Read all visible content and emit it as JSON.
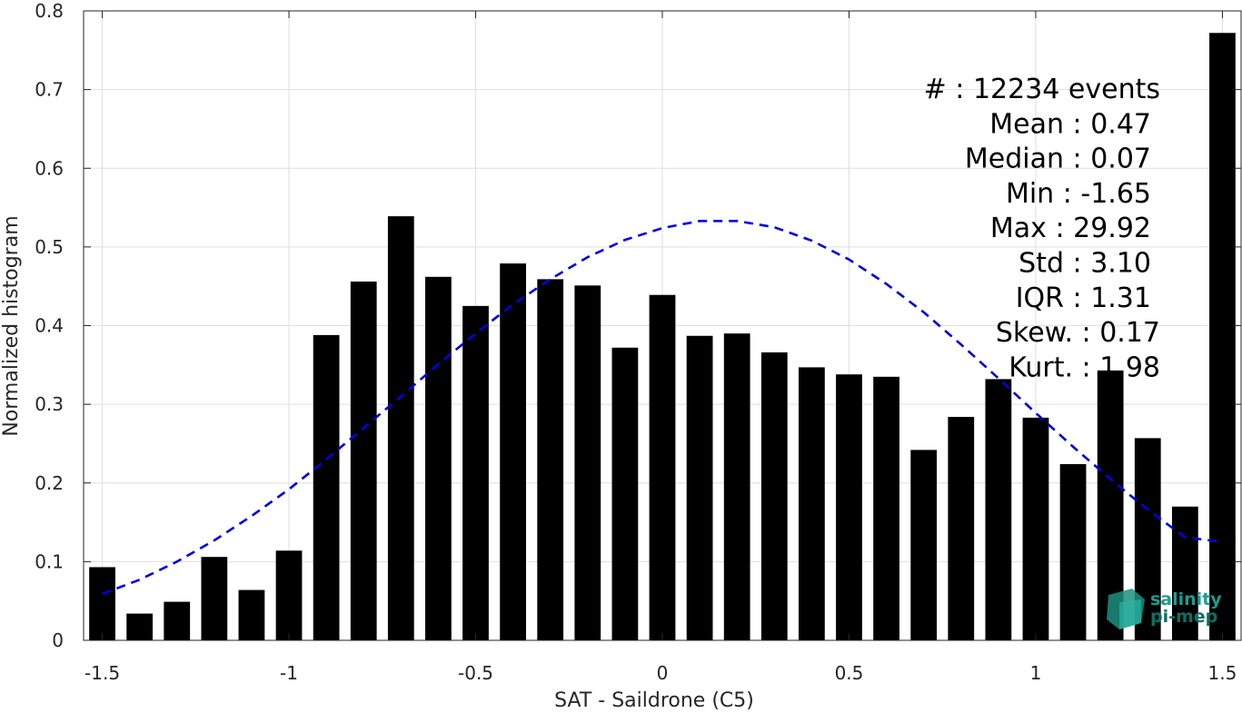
{
  "chart_data": {
    "type": "bar",
    "xlabel": "SAT - Saildrone (C5)",
    "ylabel": "Normalized histogram",
    "xlim": [
      -1.55,
      1.55
    ],
    "ylim": [
      0,
      0.8
    ],
    "x_ticks": [
      "-1.5",
      "-1",
      "-0.5",
      "0",
      "0.5",
      "1",
      "1.5"
    ],
    "y_ticks": [
      "0",
      "0.1",
      "0.2",
      "0.3",
      "0.4",
      "0.5",
      "0.6",
      "0.7",
      "0.8"
    ],
    "grid": true,
    "bar_color": "#000000",
    "bars": {
      "x": [
        -1.5,
        -1.4,
        -1.3,
        -1.2,
        -1.1,
        -1.0,
        -0.9,
        -0.8,
        -0.7,
        -0.6,
        -0.5,
        -0.4,
        -0.3,
        -0.2,
        -0.1,
        0.0,
        0.1,
        0.2,
        0.3,
        0.4,
        0.5,
        0.6,
        0.7,
        0.8,
        0.9,
        1.0,
        1.1,
        1.2,
        1.3,
        1.4,
        1.5
      ],
      "values": [
        0.093,
        0.034,
        0.049,
        0.106,
        0.064,
        0.114,
        0.388,
        0.456,
        0.539,
        0.462,
        0.425,
        0.479,
        0.459,
        0.451,
        0.372,
        0.439,
        0.387,
        0.39,
        0.366,
        0.347,
        0.338,
        0.335,
        0.242,
        0.284,
        0.332,
        0.283,
        0.224,
        0.343,
        0.257,
        0.17,
        0.772
      ]
    },
    "fit_curve": {
      "style": "dashed",
      "color": "#0000e6",
      "x": [
        -1.5,
        -1.4,
        -1.3,
        -1.2,
        -1.1,
        -1.0,
        -0.9,
        -0.8,
        -0.7,
        -0.6,
        -0.5,
        -0.4,
        -0.3,
        -0.2,
        -0.1,
        0.0,
        0.1,
        0.2,
        0.3,
        0.4,
        0.5,
        0.6,
        0.7,
        0.8,
        0.9,
        1.0,
        1.1,
        1.2,
        1.3,
        1.4,
        1.5
      ],
      "y": [
        0.059,
        0.077,
        0.1,
        0.127,
        0.158,
        0.192,
        0.23,
        0.27,
        0.31,
        0.351,
        0.39,
        0.427,
        0.459,
        0.487,
        0.509,
        0.524,
        0.533,
        0.533,
        0.525,
        0.508,
        0.484,
        0.453,
        0.417,
        0.376,
        0.333,
        0.289,
        0.246,
        0.205,
        0.166,
        0.131,
        0.125
      ]
    },
    "stats": [
      "#  : 12234 events",
      "Mean : 0.47",
      "Median : 0.07",
      "Min : -1.65",
      "Max : 29.92",
      "Std : 3.10",
      "IQR : 1.31",
      "Skew. : 0.17",
      "Kurt. : 1.98"
    ]
  },
  "logo": {
    "line1": "salinity",
    "line2": "pi-mep",
    "colors": [
      "#1a9e8f",
      "#2bb3a1",
      "#0f6e63"
    ]
  }
}
